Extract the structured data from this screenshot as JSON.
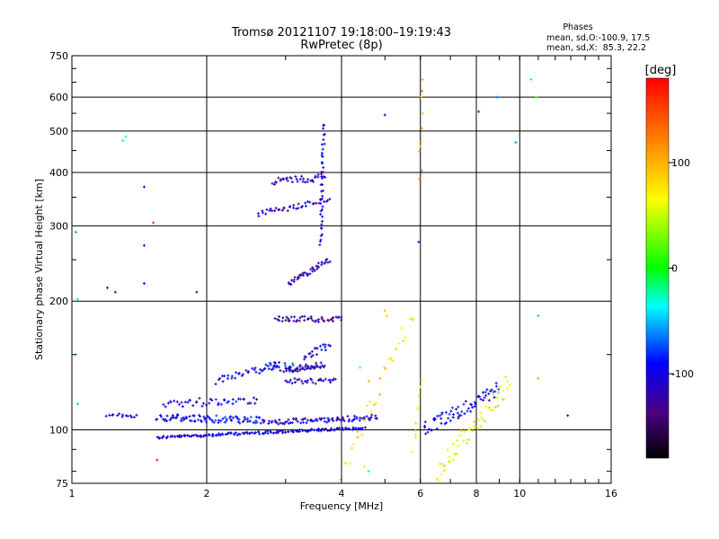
{
  "chart_data": {
    "type": "scatter",
    "title": "Tromsø 20121107 19:18:00–19:19:43",
    "subtitle": "RwPretec (8p)",
    "xlabel": "Frequency [MHz]",
    "ylabel": "Stationary phase Virtual Height [km]",
    "x_scale": "log",
    "y_scale": "log",
    "xlim": [
      1,
      16
    ],
    "ylim": [
      75,
      750
    ],
    "x_ticks": [
      1,
      2,
      4,
      6,
      8,
      10,
      16
    ],
    "y_ticks": [
      75,
      100,
      200,
      300,
      400,
      500,
      600,
      750
    ],
    "grid": true,
    "info": {
      "heading": "Phases",
      "line1": "mean, sd,O:-100.9, 17.5",
      "line2": "mean, sd,X:  85.3, 22.2"
    },
    "colorbar": {
      "label": "[deg]",
      "min": -180,
      "max": 180,
      "ticks": [
        100,
        0,
        -100
      ]
    },
    "traces": [
      {
        "x": [
          1.55,
          4.5
        ],
        "y": [
          96,
          101
        ],
        "phase": -105,
        "count": 150,
        "spread": 1.5
      },
      {
        "x": [
          1.55,
          2.7
        ],
        "y": [
          107,
          105
        ],
        "phase": -95,
        "count": 90,
        "spread": 4
      },
      {
        "x": [
          2.75,
          4.8
        ],
        "y": [
          104,
          107
        ],
        "phase": -105,
        "count": 80,
        "spread": 3
      },
      {
        "x": [
          1.2,
          1.4
        ],
        "y": [
          108,
          108
        ],
        "phase": -110,
        "count": 14,
        "spread": 2
      },
      {
        "x": [
          1.6,
          2.6
        ],
        "y": [
          115,
          118
        ],
        "phase": -100,
        "count": 45,
        "spread": 5
      },
      {
        "x": [
          2.1,
          2.9
        ],
        "y": [
          130,
          142
        ],
        "phase": -105,
        "count": 35,
        "spread": 4
      },
      {
        "x": [
          2.65,
          3.2
        ],
        "y": [
          140,
          140
        ],
        "phase": -90,
        "count": 25,
        "spread": 5
      },
      {
        "x": [
          3.0,
          3.65
        ],
        "y": [
          138,
          142
        ],
        "phase": -120,
        "count": 45,
        "spread": 3
      },
      {
        "x": [
          3.0,
          3.9
        ],
        "y": [
          130,
          130
        ],
        "phase": -115,
        "count": 30,
        "spread": 3
      },
      {
        "x": [
          3.3,
          3.75
        ],
        "y": [
          148,
          158
        ],
        "phase": -100,
        "count": 20,
        "spread": 4
      },
      {
        "x": [
          2.85,
          4.0
        ],
        "y": [
          182,
          181
        ],
        "phase": -130,
        "count": 45,
        "spread": 3
      },
      {
        "x": [
          3.05,
          3.75
        ],
        "y": [
          220,
          250
        ],
        "phase": -120,
        "count": 40,
        "spread": 3
      },
      {
        "x": [
          2.6,
          3.75
        ],
        "y": [
          320,
          345
        ],
        "phase": -110,
        "count": 40,
        "spread": 3
      },
      {
        "x": [
          2.8,
          3.65
        ],
        "y": [
          380,
          390
        ],
        "phase": -115,
        "count": 35,
        "spread": 4
      },
      {
        "x": [
          3.6,
          3.65
        ],
        "y": [
          270,
          520
        ],
        "phase": -110,
        "count": 40,
        "spread": 2
      },
      {
        "x": [
          5.8,
          6.0
        ],
        "y": [
          90,
          130
        ],
        "phase": 60,
        "count": 10,
        "spread": 5
      },
      {
        "x": [
          6.1,
          9.0
        ],
        "y": [
          100,
          125
        ],
        "phase": -100,
        "count": 70,
        "spread": 8
      },
      {
        "x": [
          6.5,
          9.5
        ],
        "y": [
          80,
          130
        ],
        "phase": 70,
        "count": 55,
        "spread": 12
      },
      {
        "x": [
          4.0,
          5.8
        ],
        "y": [
          80,
          190
        ],
        "phase": 80,
        "count": 30,
        "spread": 12
      },
      {
        "x": [
          6.0,
          6.05
        ],
        "y": [
          380,
          650
        ],
        "phase": 110,
        "count": 8,
        "spread": 4
      }
    ],
    "points": [
      {
        "x": 1.02,
        "y": 290,
        "phase": -60
      },
      {
        "x": 1.02,
        "y": 150,
        "phase": -40
      },
      {
        "x": 1.03,
        "y": 115,
        "phase": -50
      },
      {
        "x": 1.03,
        "y": 202,
        "phase": -45
      },
      {
        "x": 1.2,
        "y": 215,
        "phase": -110
      },
      {
        "x": 1.25,
        "y": 210,
        "phase": -120
      },
      {
        "x": 1.3,
        "y": 475,
        "phase": -40
      },
      {
        "x": 1.32,
        "y": 485,
        "phase": -30
      },
      {
        "x": 1.45,
        "y": 370,
        "phase": -110
      },
      {
        "x": 1.45,
        "y": 270,
        "phase": -100
      },
      {
        "x": 1.45,
        "y": 220,
        "phase": -105
      },
      {
        "x": 1.52,
        "y": 305,
        "phase": 160
      },
      {
        "x": 1.9,
        "y": 210,
        "phase": -130
      },
      {
        "x": 1.55,
        "y": 85,
        "phase": 170
      },
      {
        "x": 5.0,
        "y": 545,
        "phase": -120
      },
      {
        "x": 5.95,
        "y": 275,
        "phase": -110
      },
      {
        "x": 8.1,
        "y": 555,
        "phase": -80
      },
      {
        "x": 8.9,
        "y": 600,
        "phase": -70
      },
      {
        "x": 9.8,
        "y": 470,
        "phase": -60
      },
      {
        "x": 10.6,
        "y": 660,
        "phase": -40
      },
      {
        "x": 10.9,
        "y": 600,
        "phase": 20
      },
      {
        "x": 11.0,
        "y": 185,
        "phase": -50
      },
      {
        "x": 11.0,
        "y": 132,
        "phase": 110
      },
      {
        "x": 12.8,
        "y": 108,
        "phase": -120
      },
      {
        "x": 6.05,
        "y": 620,
        "phase": 130
      },
      {
        "x": 6.0,
        "y": 460,
        "phase": 90
      },
      {
        "x": 5.0,
        "y": 190,
        "phase": 100
      },
      {
        "x": 5.05,
        "y": 185,
        "phase": 90
      },
      {
        "x": 4.6,
        "y": 130,
        "phase": 100
      },
      {
        "x": 4.4,
        "y": 140,
        "phase": -30
      },
      {
        "x": 4.5,
        "y": 82,
        "phase": 60
      },
      {
        "x": 4.6,
        "y": 80,
        "phase": -40
      }
    ]
  }
}
